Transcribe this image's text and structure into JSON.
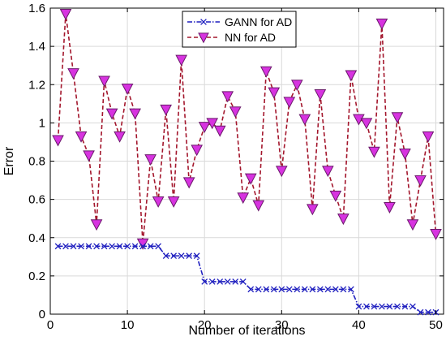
{
  "chart_data": {
    "type": "line",
    "xlabel": "Number of iterations",
    "ylabel": "Error",
    "xlim": [
      0,
      51
    ],
    "ylim": [
      0,
      1.6
    ],
    "xticks": [
      0,
      10,
      20,
      30,
      40,
      50
    ],
    "yticks": [
      0,
      0.2,
      0.4,
      0.6,
      0.8,
      1,
      1.2,
      1.4,
      1.6
    ],
    "xtick_labels": [
      "0",
      "10",
      "20",
      "30",
      "40",
      "50"
    ],
    "ytick_labels": [
      "0",
      "0.2",
      "0.4",
      "0.6",
      "0.8",
      "1",
      "1.2",
      "1.4",
      "1.6"
    ],
    "grid": true,
    "legend_position": "top-center",
    "x": [
      1,
      2,
      3,
      4,
      5,
      6,
      7,
      8,
      9,
      10,
      11,
      12,
      13,
      14,
      15,
      16,
      17,
      18,
      19,
      20,
      21,
      22,
      23,
      24,
      25,
      26,
      27,
      28,
      29,
      30,
      31,
      32,
      33,
      34,
      35,
      36,
      37,
      38,
      39,
      40,
      41,
      42,
      43,
      44,
      45,
      46,
      47,
      48,
      49,
      50
    ],
    "series": [
      {
        "name": "GANN for AD",
        "color": "#1f1fbf",
        "line_style": "dash-dot",
        "marker": "x",
        "values": [
          0.355,
          0.355,
          0.355,
          0.355,
          0.355,
          0.355,
          0.355,
          0.355,
          0.355,
          0.355,
          0.355,
          0.355,
          0.355,
          0.355,
          0.305,
          0.305,
          0.305,
          0.305,
          0.305,
          0.17,
          0.17,
          0.17,
          0.17,
          0.17,
          0.17,
          0.13,
          0.13,
          0.13,
          0.13,
          0.13,
          0.13,
          0.13,
          0.13,
          0.13,
          0.13,
          0.13,
          0.13,
          0.13,
          0.13,
          0.04,
          0.04,
          0.04,
          0.04,
          0.04,
          0.04,
          0.04,
          0.04,
          0.01,
          0.01,
          0.01
        ]
      },
      {
        "name": "NN for AD",
        "color": "#a3162c",
        "marker_color": "#d733e0",
        "line_style": "dashed",
        "marker": "triangle-down",
        "values": [
          0.91,
          1.57,
          1.26,
          0.93,
          0.83,
          0.47,
          1.22,
          1.05,
          0.93,
          1.18,
          1.05,
          0.37,
          0.81,
          0.59,
          1.07,
          0.59,
          1.33,
          0.69,
          0.86,
          0.98,
          1.0,
          0.96,
          1.14,
          1.06,
          0.61,
          0.71,
          0.57,
          1.27,
          1.16,
          0.75,
          1.11,
          1.2,
          1.02,
          0.55,
          1.15,
          0.75,
          0.62,
          0.5,
          1.25,
          1.02,
          1.0,
          0.85,
          1.52,
          0.56,
          1.03,
          0.84,
          0.47,
          0.7,
          0.93,
          0.42
        ]
      }
    ]
  }
}
